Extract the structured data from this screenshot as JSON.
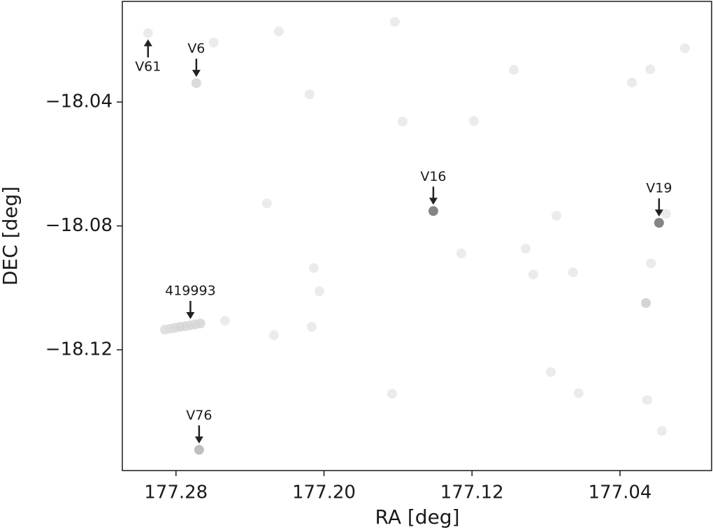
{
  "chart_data": {
    "type": "scatter",
    "xlabel": "RA [deg]",
    "ylabel": "DEC [deg]",
    "xlim": [
      177.309,
      176.9905
    ],
    "ylim": [
      -18.159,
      -18.0075
    ],
    "xticks": [
      177.28,
      {
        "value": 177.2,
        "label": "177.20"
      },
      177.12,
      177.04
    ],
    "yticks": [
      {
        "value": -18.04,
        "label": "−18.04"
      },
      {
        "value": -18.08,
        "label": "−18.08"
      },
      {
        "value": -18.12,
        "label": "−18.12"
      }
    ],
    "series": [
      {
        "x": [
          177.2951,
          177.269,
          177.2596,
          177.2244,
          177.1617,
          177.0049,
          177.0974,
          177.0237,
          177.0336,
          177.2078,
          177.1575,
          177.119,
          177.1409,
          177.0189,
          177.0151,
          177.2309,
          177.0744,
          177.091,
          177.1258,
          177.0233,
          177.2055,
          177.0654,
          177.0869,
          177.2025,
          177.026,
          177.2535,
          177.2067,
          177.2271,
          177.0774,
          177.1632,
          177.0624,
          177.0253,
          177.0174,
          177.2675,
          177.286,
          177.2832,
          177.2805,
          177.2778,
          177.275,
          177.2722,
          177.2695,
          177.2668
        ],
        "y": [
          -18.0177,
          -18.0339,
          -18.0208,
          -18.0172,
          -18.0141,
          -18.0226,
          -18.0296,
          -18.0294,
          -18.0337,
          -18.0375,
          -18.0463,
          -18.0461,
          -18.0752,
          -18.079,
          -18.0761,
          -18.0727,
          -18.0767,
          -18.0873,
          -18.0889,
          -18.0921,
          -18.0936,
          -18.095,
          -18.0957,
          -18.1011,
          -18.1049,
          -18.1106,
          -18.1126,
          -18.1153,
          -18.1272,
          -18.1342,
          -18.134,
          -18.1362,
          -18.1462,
          -18.1523,
          -18.1135,
          -18.1132,
          -18.1129,
          -18.1126,
          -18.1124,
          -18.1121,
          -18.1118,
          -18.1115
        ],
        "colors": [
          "#e8e8e8",
          "#d4d4d4",
          "#e8e8e8",
          "#e8e8e8",
          "#e8e8e8",
          "#e8e8e8",
          "#e8e8e8",
          "#e8e8e8",
          "#e8e8e8",
          "#e8e8e8",
          "#e8e8e8",
          "#e8e8e8",
          "#707070",
          "#707070",
          "#e8e8e8",
          "#e8e8e8",
          "#e8e8e8",
          "#e8e8e8",
          "#e8e8e8",
          "#e8e8e8",
          "#e8e8e8",
          "#e8e8e8",
          "#e8e8e8",
          "#e8e8e8",
          "#cccccc",
          "#e8e8e8",
          "#e8e8e8",
          "#e8e8e8",
          "#e8e8e8",
          "#e8e8e8",
          "#e8e8e8",
          "#e8e8e8",
          "#e8e8e8",
          "#b4b4b4",
          "#dcdcdc",
          "#dadada",
          "#d8d8d8",
          "#d6d6d6",
          "#d6d6d6",
          "#d6d6d6",
          "#d6d6d6",
          "#d6d6d6"
        ]
      }
    ],
    "annotations": [
      {
        "text": "V61",
        "x": 177.2951,
        "y": -18.0177
      },
      {
        "text": "V6",
        "x": 177.269,
        "y": -18.0339
      },
      {
        "text": "V16",
        "x": 177.1409,
        "y": -18.0752
      },
      {
        "text": "V19",
        "x": 177.0189,
        "y": -18.079
      },
      {
        "text": "419993",
        "x": 177.2722,
        "y": -18.1121
      },
      {
        "text": "V76",
        "x": 177.2675,
        "y": -18.1523
      }
    ]
  }
}
